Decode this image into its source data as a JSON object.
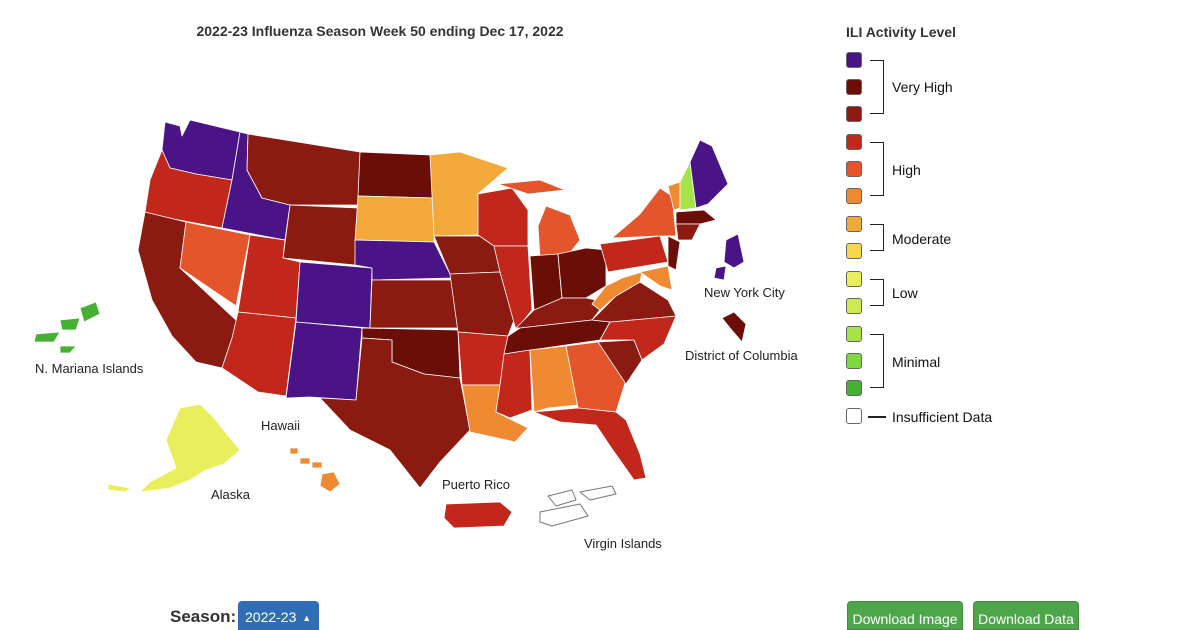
{
  "title": "2022-23 Influenza Season Week 50 ending Dec 17, 2022",
  "colors": {
    "very_high_3": "#4a1486",
    "very_high_2": "#6b0e08",
    "very_high_1": "#8b1a10",
    "high_3": "#c1271a",
    "high_2": "#e4552b",
    "high_1": "#ef8a33",
    "moderate_2": "#f3a93a",
    "moderate_1": "#f7d84a",
    "low_2": "#e8ee5c",
    "low_1": "#cdea55",
    "minimal_3": "#a6e24a",
    "minimal_2": "#7fd83f",
    "minimal_1": "#46b035",
    "insufficient": "#ffffff"
  },
  "map_labels": {
    "new_york_city": "New York City",
    "district_of_columbia": "District of Columbia",
    "n_mariana_islands": "N. Mariana Islands",
    "hawaii": "Hawaii",
    "alaska": "Alaska",
    "puerto_rico": "Puerto Rico",
    "virgin_islands": "Virgin Islands"
  },
  "legend": {
    "title": "ILI Activity Level",
    "groups": {
      "very_high": "Very High",
      "high": "High",
      "moderate": "Moderate",
      "low": "Low",
      "minimal": "Minimal",
      "insufficient": "Insufficient Data"
    }
  },
  "controls": {
    "season_label": "Season:",
    "season_value": "2022-23",
    "season_caret": "▲",
    "download_image": "Download Image",
    "download_data": "Download Data"
  }
}
